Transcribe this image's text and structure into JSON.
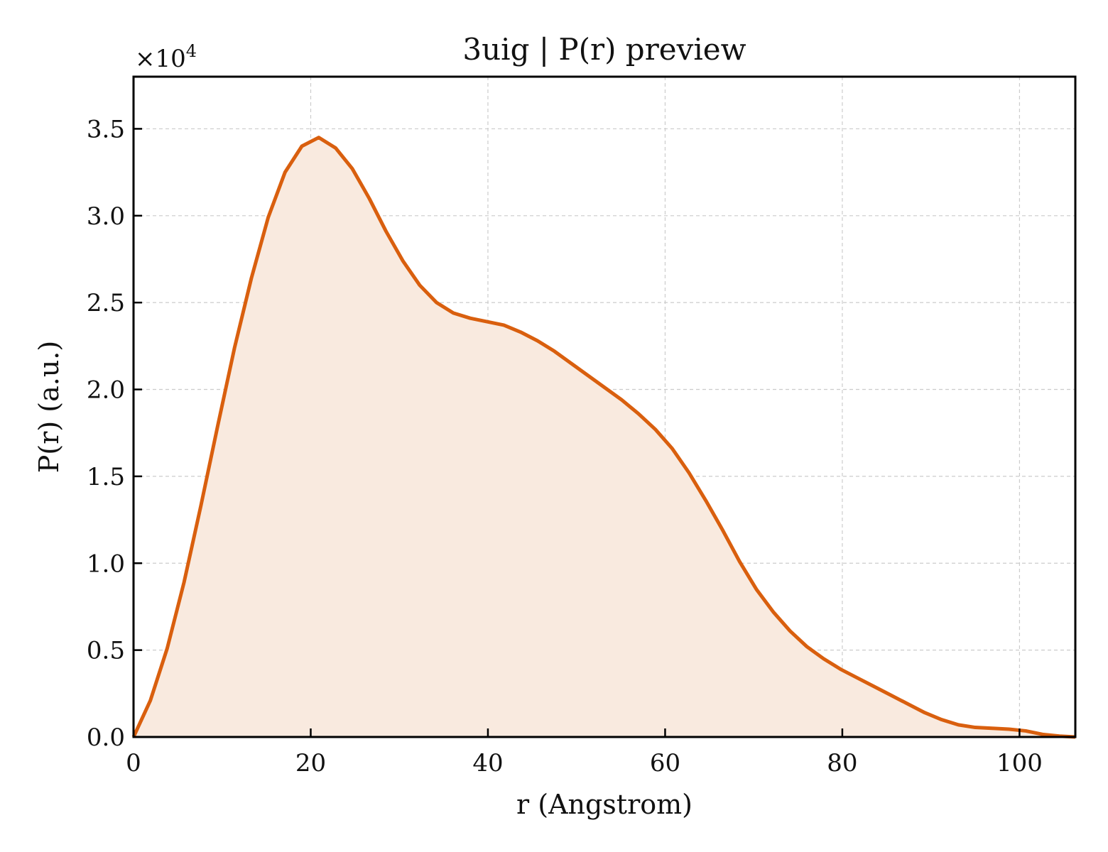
{
  "chart_data": {
    "type": "area",
    "title": "3uig | P(r) preview",
    "xlabel": "r (Angstrom)",
    "ylabel": "P(r) (a.u.)",
    "y_multiplier_label": "×10",
    "y_multiplier_exponent": "4",
    "xlim": [
      0,
      106.3
    ],
    "ylim": [
      0,
      38000
    ],
    "xticks": [
      0,
      20,
      40,
      60,
      80,
      100
    ],
    "xtick_labels": [
      "0",
      "20",
      "40",
      "60",
      "80",
      "100"
    ],
    "yticks": [
      0,
      5000,
      10000,
      15000,
      20000,
      25000,
      30000,
      35000
    ],
    "ytick_labels": [
      "0.0",
      "0.5",
      "1.0",
      "1.5",
      "2.0",
      "2.5",
      "3.0",
      "3.5"
    ],
    "grid": true,
    "colors": {
      "line": "#d95f0e",
      "fill": "#f9eadf"
    },
    "series": [
      {
        "x": [
          0,
          1.9,
          3.8,
          5.7,
          7.6,
          9.5,
          11.4,
          13.3,
          15.2,
          17.1,
          19.0,
          20.9,
          22.8,
          24.7,
          26.6,
          28.5,
          30.4,
          32.3,
          34.2,
          36.1,
          38.0,
          39.9,
          41.8,
          43.7,
          45.6,
          47.5,
          49.4,
          51.3,
          53.2,
          55.1,
          57.0,
          58.9,
          60.8,
          62.7,
          64.6,
          66.5,
          68.4,
          70.3,
          72.2,
          74.1,
          76.0,
          77.9,
          79.8,
          81.7,
          83.6,
          85.5,
          87.4,
          89.3,
          91.2,
          93.1,
          95.0,
          96.9,
          98.8,
          100.7,
          102.6,
          104.5,
          106.3
        ],
        "y": [
          0,
          2100,
          5100,
          8900,
          13300,
          17900,
          22400,
          26400,
          29900,
          32500,
          34000,
          34500,
          33900,
          32700,
          31000,
          29100,
          27400,
          26000,
          25000,
          24400,
          24100,
          23900,
          23700,
          23300,
          22800,
          22200,
          21500,
          20800,
          20100,
          19400,
          18600,
          17700,
          16600,
          15200,
          13600,
          11900,
          10100,
          8500,
          7200,
          6100,
          5200,
          4500,
          3900,
          3400,
          2900,
          2400,
          1900,
          1400,
          1000,
          700,
          550,
          500,
          450,
          350,
          150,
          50,
          0
        ]
      }
    ]
  }
}
